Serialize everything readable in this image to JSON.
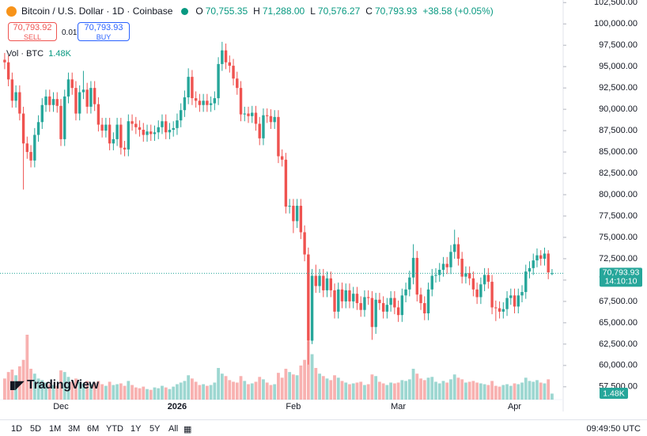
{
  "header": {
    "title": "Bitcoin / U.S. Dollar · 1D · Coinbase",
    "o_key": "O",
    "o": "70,755.35",
    "h_key": "H",
    "h": "71,288.00",
    "l_key": "L",
    "l": "70,576.27",
    "c_key": "C",
    "c": "70,793.93",
    "change": "+38.58 (+0.05%)"
  },
  "order": {
    "sell_price": "70,793.92",
    "sell": "SELL",
    "spread": "0.01",
    "buy_price": "70,793.93",
    "buy": "BUY"
  },
  "logo": "TradingView",
  "toolbar": {
    "ranges": [
      "1D",
      "5D",
      "1M",
      "3M",
      "6M",
      "YTD",
      "1Y",
      "5Y",
      "All"
    ],
    "time": "09:49:50 UTC"
  },
  "chart_data": {
    "type": "candlestick",
    "up_color": "#26a69a",
    "down_color": "#ef5350",
    "categories": [
      null,
      null,
      null,
      null,
      null,
      null,
      null,
      null,
      null,
      null,
      null,
      null,
      null,
      null,
      null,
      "Dec",
      null,
      null,
      null,
      null,
      null,
      null,
      null,
      null,
      null,
      null,
      null,
      null,
      null,
      null,
      null,
      null,
      null,
      null,
      null,
      null,
      null,
      null,
      null,
      null,
      null,
      null,
      null,
      null,
      null,
      null,
      "2026",
      null,
      null,
      null,
      null,
      null,
      null,
      null,
      null,
      null,
      null,
      null,
      null,
      null,
      null,
      null,
      null,
      null,
      null,
      null,
      null,
      null,
      null,
      null,
      null,
      null,
      null,
      null,
      null,
      null,
      null,
      "Feb",
      null,
      null,
      null,
      null,
      null,
      null,
      null,
      null,
      null,
      null,
      null,
      null,
      null,
      null,
      null,
      null,
      null,
      null,
      null,
      null,
      null,
      null,
      null,
      null,
      null,
      null,
      null,
      "Mar",
      null,
      null,
      null,
      null,
      null,
      null,
      null,
      null,
      null,
      null,
      null,
      null,
      null,
      null,
      null,
      null,
      null,
      null,
      null,
      null,
      null,
      null,
      null,
      null,
      null,
      null,
      null,
      null,
      null,
      null,
      "Apr",
      null,
      null,
      null,
      null,
      null,
      null,
      null,
      null,
      null,
      null
    ],
    "open": [
      95800,
      95500,
      93500,
      91000,
      92000,
      89500,
      86000,
      85000,
      84000,
      87000,
      88500,
      90500,
      91500,
      90500,
      91200,
      90400,
      86500,
      91500,
      93500,
      92500,
      89500,
      92000,
      92300,
      90300,
      92500,
      90600,
      88200,
      87500,
      88200,
      86000,
      86500,
      88200,
      85500,
      85300,
      88600,
      88300,
      87900,
      87600,
      87000,
      87400,
      87100,
      87300,
      87900,
      88600,
      87300,
      87600,
      87800,
      88700,
      89900,
      91400,
      93800,
      91300,
      91000,
      90500,
      91000,
      90500,
      90700,
      91300,
      95300,
      96900,
      95500,
      95100,
      93600,
      92500,
      89400,
      89500,
      89200,
      89600,
      88300,
      86600,
      89300,
      89200,
      88500,
      89100,
      84500,
      84100,
      78600,
      78700,
      76900,
      78700,
      75600,
      73000,
      62900,
      70500,
      69300,
      70500,
      68800,
      70200,
      68800,
      66300,
      68900,
      67500,
      68800,
      67500,
      68400,
      67300,
      66500,
      68000,
      67900,
      64500,
      67700,
      67300,
      66300,
      67100,
      67900,
      66800,
      65900,
      68200,
      68900,
      70300,
      72600,
      68300,
      67300,
      66100,
      68900,
      70500,
      70600,
      71200,
      71900,
      71500,
      73300,
      74200,
      72500,
      70400,
      70800,
      70200,
      68900,
      68000,
      69500,
      70600,
      69800,
      66800,
      66700,
      66300,
      66600,
      67900,
      68200,
      66900,
      68200,
      68600,
      71000,
      71400,
      72300,
      72900,
      72500,
      73100,
      70755.35
    ],
    "high": [
      96600,
      96300,
      94300,
      92800,
      92800,
      90300,
      86800,
      85800,
      87800,
      89300,
      91300,
      92300,
      92300,
      92000,
      92000,
      91200,
      92300,
      94300,
      94300,
      93300,
      92800,
      94500,
      93100,
      93300,
      93300,
      91400,
      89000,
      89000,
      89000,
      87300,
      89000,
      89000,
      86300,
      89400,
      89400,
      89100,
      88700,
      88400,
      88200,
      88200,
      88100,
      88700,
      89400,
      89400,
      88400,
      88600,
      89500,
      90700,
      92200,
      94800,
      94600,
      92100,
      91800,
      91800,
      91800,
      91500,
      92100,
      96100,
      97900,
      97700,
      96300,
      95900,
      94400,
      93300,
      90300,
      90300,
      90400,
      90400,
      89100,
      90100,
      90100,
      90000,
      89900,
      89900,
      85300,
      84900,
      79500,
      79500,
      79500,
      79500,
      76400,
      73800,
      71300,
      71800,
      71300,
      71300,
      71000,
      71000,
      69600,
      69700,
      69700,
      69600,
      69600,
      69200,
      69200,
      68100,
      68800,
      68800,
      68700,
      68500,
      68500,
      68100,
      67900,
      68700,
      68700,
      67600,
      69000,
      69700,
      71100,
      74200,
      73400,
      69100,
      68100,
      69700,
      71300,
      71400,
      72000,
      72700,
      72700,
      74100,
      75900,
      75000,
      73300,
      71600,
      71600,
      71000,
      69700,
      70300,
      71400,
      71400,
      70600,
      67600,
      67500,
      67400,
      68700,
      69000,
      69000,
      69000,
      69400,
      71800,
      72200,
      73100,
      73700,
      73500,
      73800,
      73500,
      71288
    ],
    "low": [
      94700,
      92700,
      90200,
      90200,
      88700,
      80600,
      84200,
      83200,
      83200,
      86200,
      87700,
      89700,
      89700,
      89700,
      89600,
      85700,
      85700,
      90700,
      91700,
      88700,
      88700,
      91200,
      89500,
      89500,
      89800,
      87400,
      86700,
      86700,
      85200,
      85200,
      85700,
      84700,
      84500,
      84500,
      87500,
      87100,
      86800,
      86200,
      86200,
      86300,
      86300,
      86500,
      87100,
      86500,
      86500,
      86800,
      87000,
      87900,
      89100,
      90600,
      90500,
      90200,
      89700,
      89700,
      89700,
      89700,
      89900,
      90500,
      94500,
      94700,
      94300,
      92800,
      91700,
      88600,
      88600,
      88400,
      88400,
      87500,
      85800,
      85800,
      88400,
      87700,
      87700,
      83700,
      83300,
      77800,
      77800,
      75500,
      76100,
      74800,
      72200,
      60100,
      62500,
      68500,
      68500,
      68000,
      68000,
      68000,
      65500,
      65500,
      66700,
      66700,
      66700,
      66700,
      66500,
      65700,
      65700,
      67100,
      63000,
      63700,
      66500,
      65500,
      65500,
      66300,
      66000,
      65100,
      65100,
      67400,
      68100,
      69500,
      67500,
      66500,
      65300,
      65300,
      68100,
      69700,
      69800,
      70400,
      70700,
      70700,
      72500,
      71700,
      69600,
      69600,
      69400,
      68100,
      67200,
      67200,
      68700,
      69000,
      66000,
      65200,
      65500,
      65500,
      65800,
      67100,
      66100,
      66100,
      67400,
      67800,
      70200,
      70600,
      71500,
      71700,
      71700,
      70100,
      70576.27
    ],
    "close": [
      95500,
      93500,
      91000,
      92000,
      89500,
      86000,
      85000,
      84000,
      87000,
      88500,
      90500,
      91500,
      90500,
      91200,
      90400,
      86500,
      91500,
      93500,
      92500,
      89500,
      92000,
      92300,
      90300,
      92500,
      90600,
      88200,
      87500,
      88200,
      86000,
      86500,
      88200,
      85500,
      85300,
      88600,
      88300,
      87900,
      87600,
      87000,
      87400,
      87100,
      87300,
      87900,
      88600,
      87300,
      87600,
      87800,
      88700,
      89900,
      91400,
      93800,
      91300,
      91000,
      90500,
      91000,
      90500,
      90700,
      91300,
      95300,
      96900,
      95500,
      95100,
      93600,
      92500,
      89400,
      89500,
      89200,
      89600,
      88300,
      86600,
      89300,
      89200,
      88500,
      89100,
      84500,
      84100,
      78600,
      78700,
      76900,
      78700,
      75600,
      73000,
      62900,
      70500,
      69300,
      70500,
      68800,
      70200,
      68800,
      66300,
      68900,
      67500,
      68800,
      67500,
      68400,
      67300,
      66500,
      68000,
      67900,
      64500,
      67700,
      67300,
      66300,
      67100,
      67900,
      66800,
      65900,
      68200,
      68900,
      70300,
      72600,
      68300,
      67300,
      66100,
      68900,
      70500,
      70600,
      71200,
      71900,
      71500,
      73300,
      74200,
      72500,
      70400,
      70800,
      70200,
      68900,
      68000,
      69500,
      70600,
      69800,
      66800,
      66700,
      66300,
      66600,
      67900,
      68200,
      66900,
      68200,
      68600,
      71000,
      71400,
      72300,
      72900,
      72500,
      73100,
      70900,
      70793.93
    ],
    "volume": {
      "name": "Vol · BTC",
      "last_label": "1.48K",
      "values": [
        5200,
        6800,
        7400,
        6000,
        8200,
        9800,
        16000,
        7600,
        6400,
        5200,
        4800,
        4200,
        3800,
        3600,
        3400,
        7200,
        6800,
        5600,
        4400,
        5200,
        4400,
        4000,
        4600,
        3800,
        4200,
        4600,
        3800,
        3400,
        4400,
        3600,
        3800,
        4000,
        3400,
        4600,
        3600,
        3000,
        2800,
        3200,
        2600,
        2400,
        3000,
        2800,
        3400,
        3000,
        2600,
        3200,
        3800,
        4200,
        4600,
        6000,
        5200,
        4400,
        3600,
        3800,
        3400,
        3600,
        4200,
        7800,
        6400,
        5800,
        4800,
        4400,
        4200,
        5800,
        4600,
        3800,
        4000,
        4400,
        5600,
        5000,
        4200,
        3600,
        3800,
        6600,
        5400,
        7600,
        6800,
        6200,
        6000,
        8400,
        9800,
        14400,
        11200,
        7800,
        6400,
        5800,
        5200,
        4800,
        6000,
        5400,
        4600,
        4200,
        3800,
        4000,
        4200,
        4400,
        3600,
        3800,
        6200,
        5800,
        4400,
        4000,
        3600,
        4200,
        4000,
        4200,
        4800,
        4600,
        5000,
        7600,
        6400,
        5200,
        4800,
        5400,
        5600,
        4400,
        4000,
        4600,
        4200,
        5000,
        6200,
        5400,
        5000,
        4200,
        4400,
        4600,
        4200,
        4000,
        3800,
        3600,
        4600,
        3400,
        3200,
        3600,
        3800,
        3400,
        4000,
        3800,
        4200,
        5400,
        4600,
        4400,
        4800,
        4200,
        4000,
        5000,
        1480
      ]
    },
    "price_line": {
      "value": 70793.93,
      "label": "70,793.93",
      "countdown": "14:10:10"
    },
    "ylim": [
      56000,
      102800
    ],
    "yticks": [
      {
        "value": 57500,
        "label": "57,500.00"
      },
      {
        "value": 60000,
        "label": "60,000.00"
      },
      {
        "value": 62500,
        "label": "62,500.00"
      },
      {
        "value": 65000,
        "label": "65,000.00"
      },
      {
        "value": 67500,
        "label": "67,500.00"
      },
      {
        "value": 70000,
        "label": "70,000.00"
      },
      {
        "value": 72500,
        "label": "72,500.00"
      },
      {
        "value": 75000,
        "label": "75,000.00"
      },
      {
        "value": 77500,
        "label": "77,500.00"
      },
      {
        "value": 80000,
        "label": "80,000.00"
      },
      {
        "value": 82500,
        "label": "82,500.00"
      },
      {
        "value": 85000,
        "label": "85,000.00"
      },
      {
        "value": 87500,
        "label": "87,500.00"
      },
      {
        "value": 90000,
        "label": "90,000.00"
      },
      {
        "value": 92500,
        "label": "92,500.00"
      },
      {
        "value": 95000,
        "label": "95,000.00"
      },
      {
        "value": 97500,
        "label": "97,500.00"
      },
      {
        "value": 100000,
        "label": "100,000.00"
      },
      {
        "value": 102500,
        "label": "102,500.00"
      }
    ]
  }
}
